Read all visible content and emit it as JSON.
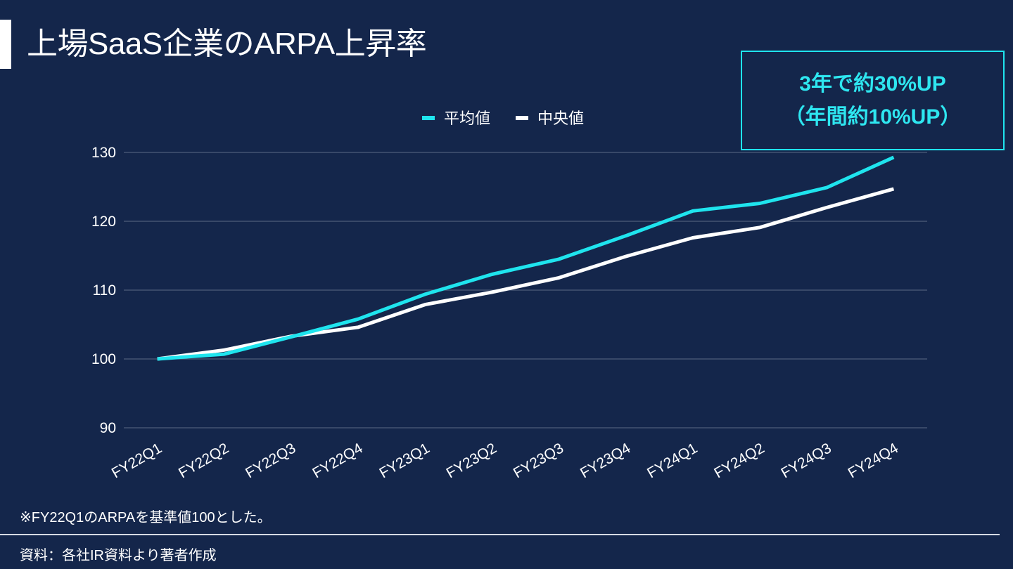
{
  "title": "上場SaaS企業のARPA上昇率",
  "callout": {
    "line1": "3年で約30%UP",
    "line2": "（年間約10%UP）"
  },
  "footnote": "※FY22Q1のARPAを基準値100とした。",
  "source": "資料：各社IR資料より著者作成",
  "colors": {
    "background": "#14264b",
    "series_mean": "#1fe4ee",
    "series_median": "#ffffff",
    "grid": "#5d6a86"
  },
  "chart_data": {
    "type": "line",
    "categories": [
      "FY22Q1",
      "FY22Q2",
      "FY22Q3",
      "FY22Q4",
      "FY23Q1",
      "FY23Q2",
      "FY23Q3",
      "FY23Q4",
      "FY24Q1",
      "FY24Q2",
      "FY24Q3",
      "FY24Q4"
    ],
    "series": [
      {
        "name": "平均値",
        "color": "#1fe4ee",
        "values": [
          100,
          100.7,
          103.2,
          105.8,
          109.4,
          112.3,
          114.5,
          117.9,
          121.5,
          122.6,
          124.9,
          129.3
        ]
      },
      {
        "name": "中央値",
        "color": "#ffffff",
        "values": [
          100,
          101.3,
          103.3,
          104.6,
          107.9,
          109.7,
          111.8,
          114.9,
          117.6,
          119.1,
          122.0,
          124.7
        ]
      }
    ],
    "yticks": [
      90,
      100,
      110,
      120,
      130
    ],
    "ylim": [
      90,
      130
    ],
    "grid": true,
    "legend": "top-center",
    "xlabel": "",
    "ylabel": ""
  }
}
